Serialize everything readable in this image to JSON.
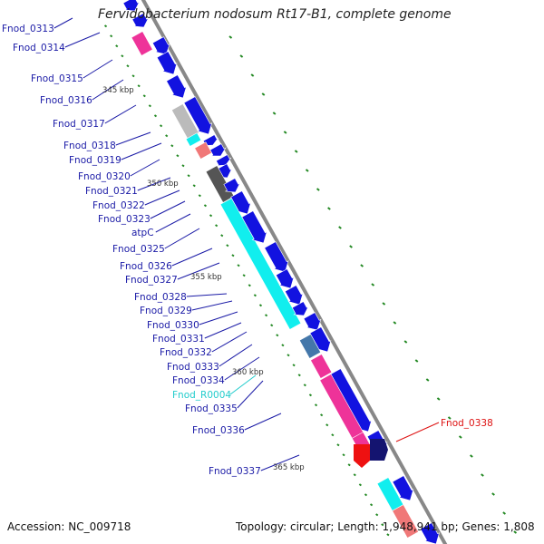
{
  "title": "Fervidobacterium nodosum Rt17-B1, complete genome",
  "footer": {
    "accession": "Accession: NC_009718",
    "summary": "Topology: circular; Length: 1,948,941 bp; Genes: 1,808"
  },
  "colors": {
    "gene_label": "#1a1aa6",
    "rna_label": "#22cccc",
    "highlight_label": "#dd1111",
    "cds": "#1212e0",
    "dark_cds": "#141470",
    "pink": "#ee3399",
    "cyan": "#11eeee",
    "grey": "#bbbbbb",
    "dark_grey": "#555555",
    "salmon": "#f07878",
    "steel": "#4477aa",
    "red": "#ee1111",
    "backbone": "#888888",
    "tick": "#228822"
  },
  "gene_labels": [
    {
      "id": "Fnod_0313",
      "kind": "gene"
    },
    {
      "id": "Fnod_0314",
      "kind": "gene"
    },
    {
      "id": "Fnod_0315",
      "kind": "gene"
    },
    {
      "id": "Fnod_0316",
      "kind": "gene"
    },
    {
      "id": "Fnod_0317",
      "kind": "gene"
    },
    {
      "id": "Fnod_0318",
      "kind": "gene"
    },
    {
      "id": "Fnod_0319",
      "kind": "gene"
    },
    {
      "id": "Fnod_0320",
      "kind": "gene"
    },
    {
      "id": "Fnod_0321",
      "kind": "gene"
    },
    {
      "id": "Fnod_0322",
      "kind": "gene"
    },
    {
      "id": "Fnod_0323",
      "kind": "gene"
    },
    {
      "id": "atpC",
      "kind": "gene"
    },
    {
      "id": "Fnod_0325",
      "kind": "gene"
    },
    {
      "id": "Fnod_0326",
      "kind": "gene"
    },
    {
      "id": "Fnod_0327",
      "kind": "gene"
    },
    {
      "id": "Fnod_0328",
      "kind": "gene"
    },
    {
      "id": "Fnod_0329",
      "kind": "gene"
    },
    {
      "id": "Fnod_0330",
      "kind": "gene"
    },
    {
      "id": "Fnod_0331",
      "kind": "gene"
    },
    {
      "id": "Fnod_0332",
      "kind": "gene"
    },
    {
      "id": "Fnod_0333",
      "kind": "gene"
    },
    {
      "id": "Fnod_0334",
      "kind": "gene"
    },
    {
      "id": "Fnod_R0004",
      "kind": "rna"
    },
    {
      "id": "Fnod_0335",
      "kind": "gene"
    },
    {
      "id": "Fnod_0336",
      "kind": "gene"
    },
    {
      "id": "Fnod_0337",
      "kind": "gene"
    },
    {
      "id": "Fnod_0338",
      "kind": "highlight"
    }
  ],
  "kbp_markers": [
    "345 kbp",
    "350 kbp",
    "355 kbp",
    "360 kbp",
    "365 kbp"
  ]
}
